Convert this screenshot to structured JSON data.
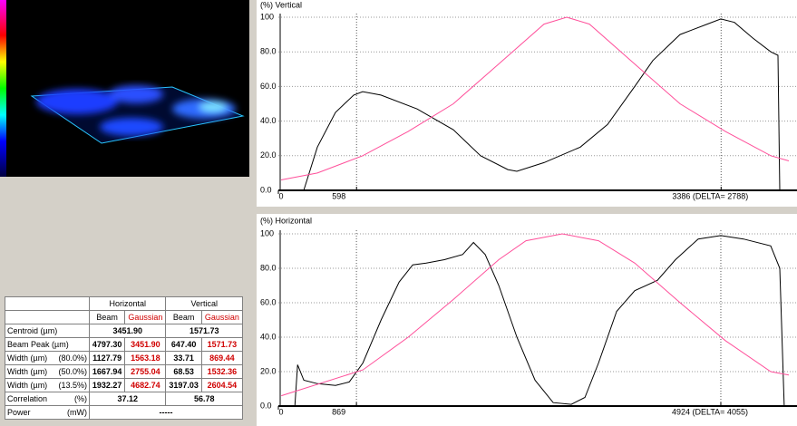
{
  "chart_data": [
    {
      "type": "line",
      "title": "(%) Vertical",
      "xlim": [
        0,
        3904
      ],
      "xticks": [
        0
      ],
      "ylim": [
        0,
        100
      ],
      "yticks": [
        {
          "value": 0,
          "label": "0.0"
        },
        {
          "value": 20,
          "label": "20.0"
        },
        {
          "value": 40,
          "label": "40.0"
        },
        {
          "value": 60,
          "label": "60.0"
        },
        {
          "value": 80,
          "label": "80.0"
        },
        100
      ],
      "grid": true,
      "cursors": [
        {
          "value": 598,
          "label": "598"
        },
        {
          "value": 3386,
          "label": "3386 (DELTA= 2788)"
        }
      ],
      "series": [
        {
          "color": "#000000",
          "x": [
            21,
            194,
            298,
            437,
            576,
            645,
            784,
            1061,
            1338,
            1546,
            1755,
            1824,
            2032,
            2309,
            2517,
            2725,
            2864,
            3072,
            3280,
            3384,
            3488,
            3627,
            3766,
            3821,
            3835
          ],
          "values": [
            0,
            0,
            25,
            45,
            55,
            57,
            55,
            47,
            35,
            20,
            12,
            11,
            16,
            25,
            38,
            60,
            75,
            90,
            96,
            99,
            97,
            88,
            80,
            78,
            0
          ]
        },
        {
          "color": "#ff4f9a",
          "x": [
            21,
            298,
            645,
            992,
            1338,
            1685,
            2032,
            2205,
            2379,
            2725,
            3072,
            3419,
            3766,
            3904
          ],
          "values": [
            6,
            10,
            20,
            34,
            50,
            73,
            96,
            100,
            96,
            73,
            50,
            34,
            20,
            17
          ]
        }
      ]
    },
    {
      "type": "line",
      "title": "(%) Horizontal",
      "xlim": [
        0,
        5681
      ],
      "xticks": [
        0
      ],
      "ylim": [
        0,
        100
      ],
      "yticks": [
        {
          "value": 0,
          "label": "0.0"
        },
        {
          "value": 20,
          "label": "20.0"
        },
        {
          "value": 40,
          "label": "40.0"
        },
        {
          "value": 60,
          "label": "60.0"
        },
        {
          "value": 80,
          "label": "80.0"
        },
        100
      ],
      "grid": true,
      "cursors": [
        {
          "value": 869,
          "label": "869"
        },
        {
          "value": 4924,
          "label": "4924 (DELTA= 4055)"
        }
      ],
      "series": [
        {
          "color": "#000000",
          "x": [
            184,
            214,
            284,
            436,
            637,
            789,
            940,
            1143,
            1344,
            1495,
            1646,
            1848,
            2050,
            2171,
            2302,
            2453,
            2655,
            2857,
            3058,
            3260,
            3412,
            3563,
            3765,
            3967,
            4218,
            4420,
            4672,
            4924,
            5176,
            5479,
            5580,
            5630
          ],
          "values": [
            0,
            24,
            15,
            13,
            12,
            14,
            25,
            50,
            72,
            82,
            83,
            85,
            88,
            95,
            88,
            70,
            40,
            15,
            2,
            1,
            5,
            25,
            55,
            67,
            73,
            85,
            97,
            99,
            97,
            93,
            80,
            0
          ]
        },
        {
          "color": "#ff4f9a",
          "x": [
            32,
            940,
            1445,
            1949,
            2453,
            2756,
            3159,
            3563,
            3967,
            4471,
            4975,
            5479,
            5681
          ],
          "values": [
            6,
            21,
            40,
            62,
            85,
            96,
            100,
            96,
            83,
            60,
            38,
            20,
            18
          ]
        }
      ]
    }
  ],
  "table": {
    "groups": [
      "Horizontal",
      "Vertical"
    ],
    "columns": [
      "Beam",
      "Gaussian",
      "Beam",
      "Gaussian"
    ],
    "rows": [
      {
        "label": "Centroid (µm)",
        "cells": [
          "3451.90",
          "1571.73"
        ]
      },
      {
        "label": "Beam Peak (µm)",
        "cells": [
          "4797.30",
          "3451.90",
          "647.40",
          "1571.73"
        ]
      },
      {
        "label": "Width (µm)",
        "unit": "(80.0%)",
        "cells": [
          "1127.79",
          "1563.18",
          "33.71",
          "869.44"
        ]
      },
      {
        "label": "Width (µm)",
        "unit": "(50.0%)",
        "cells": [
          "1667.94",
          "2755.04",
          "68.53",
          "1532.36"
        ]
      },
      {
        "label": "Width (µm)",
        "unit": "(13.5%)",
        "cells": [
          "1932.27",
          "4682.74",
          "3197.03",
          "2604.54"
        ]
      },
      {
        "label": "Correlation",
        "unit": "(%)",
        "cells": [
          "37.12",
          "56.78"
        ]
      },
      {
        "label": "Power",
        "unit": "(mW)",
        "cells": [
          "-----"
        ]
      }
    ]
  }
}
